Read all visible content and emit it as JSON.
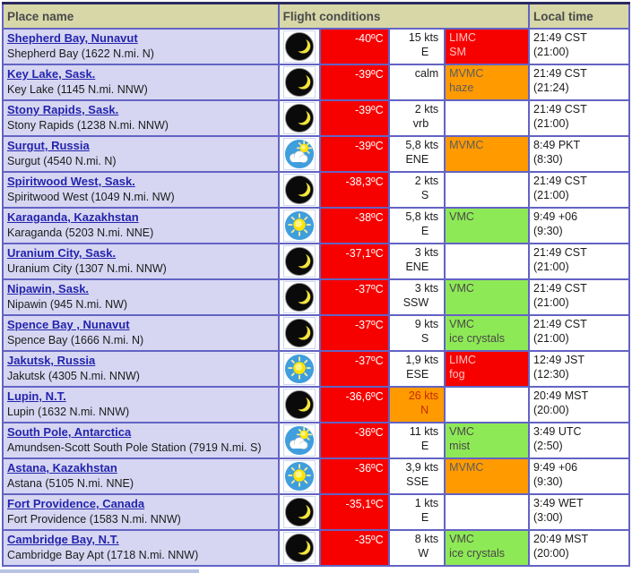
{
  "header": {
    "place": "Place name",
    "flight": "Flight conditions",
    "local": "Local time"
  },
  "colors": {
    "header_bg": "#d7d7a8",
    "place_cell_bg": "#d6d6f2",
    "cell_border": "#6363c4",
    "link_blue": "#2424ae",
    "limc_red": "#f70000",
    "mvmc_orange": "#ff9a00",
    "vmc_green": "#8ee956",
    "temp_bg_red": "#f70000",
    "wind_alert_bg": "#ff9a00"
  },
  "rows": [
    {
      "name": "Shepherd Bay, Nunavut",
      "detail": "Shepherd Bay (1622 N.mi. N)",
      "icon": "moon",
      "temp": "-40ºC",
      "wind_speed": "15 kts",
      "wind_dir": "E",
      "wind_alert": false,
      "cond_code": "LIMC",
      "cond_desc": "SM",
      "cond_level": "limc",
      "time": "21:49 CST",
      "time_alt": "(21:00)"
    },
    {
      "name": "Key Lake, Sask.",
      "detail": "Key Lake (1145 N.mi. NNW)",
      "icon": "moon",
      "temp": "-39ºC",
      "wind_speed": "calm",
      "wind_dir": "",
      "wind_alert": false,
      "cond_code": "MVMC",
      "cond_desc": "haze",
      "cond_level": "mvmc",
      "time": "21:49 CST",
      "time_alt": "(21:24)"
    },
    {
      "name": "Stony Rapids, Sask.",
      "detail": "Stony Rapids (1238 N.mi. NNW)",
      "icon": "moon",
      "temp": "-39ºC",
      "wind_speed": "2 kts",
      "wind_dir": "vrb",
      "wind_alert": false,
      "cond_code": "",
      "cond_desc": "",
      "cond_level": "none",
      "time": "21:49 CST",
      "time_alt": "(21:00)"
    },
    {
      "name": "Surgut, Russia",
      "detail": "Surgut (4540 N.mi. N)",
      "icon": "suncloud",
      "temp": "-39ºC",
      "wind_speed": "5,8 kts",
      "wind_dir": "ENE",
      "wind_alert": false,
      "cond_code": "MVMC",
      "cond_desc": "",
      "cond_level": "mvmc",
      "time": "8:49 PKT",
      "time_alt": "(8:30)"
    },
    {
      "name": "Spiritwood West, Sask.",
      "detail": "Spiritwood West (1049 N.mi. NW)",
      "icon": "moon",
      "temp": "-38,3ºC",
      "wind_speed": "2 kts",
      "wind_dir": "S",
      "wind_alert": false,
      "cond_code": "",
      "cond_desc": "",
      "cond_level": "none",
      "time": "21:49 CST",
      "time_alt": "(21:00)"
    },
    {
      "name": "Karaganda, Kazakhstan",
      "detail": "Karaganda (5203 N.mi. NNE)",
      "icon": "sun",
      "temp": "-38ºC",
      "wind_speed": "5,8 kts",
      "wind_dir": "E",
      "wind_alert": false,
      "cond_code": "VMC",
      "cond_desc": "",
      "cond_level": "vmc",
      "time": "9:49 +06",
      "time_alt": "(9:30)"
    },
    {
      "name": "Uranium City, Sask.",
      "detail": "Uranium City (1307 N.mi. NNW)",
      "icon": "moon",
      "temp": "-37,1ºC",
      "wind_speed": "3 kts",
      "wind_dir": "ENE",
      "wind_alert": false,
      "cond_code": "",
      "cond_desc": "",
      "cond_level": "none",
      "time": "21:49 CST",
      "time_alt": "(21:00)"
    },
    {
      "name": "Nipawin, Sask.",
      "detail": "Nipawin (945 N.mi. NW)",
      "icon": "moon",
      "temp": "-37ºC",
      "wind_speed": "3 kts",
      "wind_dir": "SSW",
      "wind_alert": false,
      "cond_code": "VMC",
      "cond_desc": "",
      "cond_level": "vmc",
      "time": "21:49 CST",
      "time_alt": "(21:00)"
    },
    {
      "name": "Spence Bay , Nunavut",
      "detail": "Spence Bay (1666 N.mi. N)",
      "icon": "moon",
      "temp": "-37ºC",
      "wind_speed": "9 kts",
      "wind_dir": "S",
      "wind_alert": false,
      "cond_code": "VMC",
      "cond_desc": "ice crystals",
      "cond_level": "vmc",
      "time": "21:49 CST",
      "time_alt": "(21:00)"
    },
    {
      "name": "Jakutsk, Russia",
      "detail": "Jakutsk (4305 N.mi. NNW)",
      "icon": "sun",
      "temp": "-37ºC",
      "wind_speed": "1,9 kts",
      "wind_dir": "ESE",
      "wind_alert": false,
      "cond_code": "LIMC",
      "cond_desc": "fog",
      "cond_level": "limc",
      "time": "12:49 JST",
      "time_alt": "(12:30)"
    },
    {
      "name": "Lupin, N.T.",
      "detail": "Lupin (1632 N.mi. NNW)",
      "icon": "moon",
      "temp": "-36,6ºC",
      "wind_speed": "26 kts",
      "wind_dir": "N",
      "wind_alert": true,
      "cond_code": "",
      "cond_desc": "",
      "cond_level": "none",
      "time": "20:49 MST",
      "time_alt": "(20:00)"
    },
    {
      "name": "South Pole, Antarctica",
      "detail": "Amundsen-Scott South Pole Station (7919 N.mi. S)",
      "icon": "suncloud",
      "temp": "-36ºC",
      "wind_speed": "11 kts",
      "wind_dir": "E",
      "wind_alert": false,
      "cond_code": "VMC",
      "cond_desc": "mist",
      "cond_level": "vmc",
      "time": "3:49 UTC",
      "time_alt": "(2:50)"
    },
    {
      "name": "Astana, Kazakhstan",
      "detail": "Astana (5105 N.mi. NNE)",
      "icon": "sun",
      "temp": "-36ºC",
      "wind_speed": "3,9 kts",
      "wind_dir": "SSE",
      "wind_alert": false,
      "cond_code": "MVMC",
      "cond_desc": "",
      "cond_level": "mvmc",
      "time": "9:49 +06",
      "time_alt": "(9:30)"
    },
    {
      "name": "Fort Providence, Canada",
      "detail": "Fort Providence (1583 N.mi. NNW)",
      "icon": "moon",
      "temp": "-35,1ºC",
      "wind_speed": "1 kts",
      "wind_dir": "E",
      "wind_alert": false,
      "cond_code": "",
      "cond_desc": "",
      "cond_level": "none",
      "time": "3:49 WET",
      "time_alt": "(3:00)"
    },
    {
      "name": "Cambridge Bay, N.T.",
      "detail": "Cambridge Bay Apt (1718 N.mi. NNW)",
      "icon": "moon",
      "temp": "-35ºC",
      "wind_speed": "8 kts",
      "wind_dir": "W",
      "wind_alert": false,
      "cond_code": "VMC",
      "cond_desc": "ice crystals",
      "cond_level": "vmc",
      "time": "20:49 MST",
      "time_alt": "(20:00)"
    }
  ]
}
